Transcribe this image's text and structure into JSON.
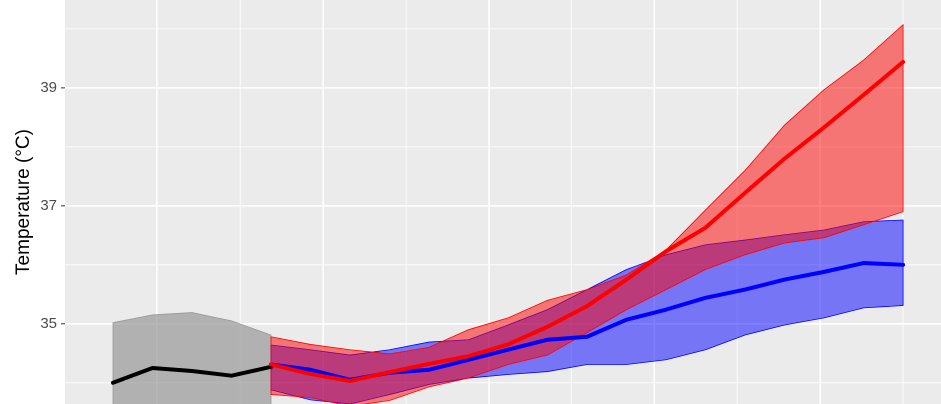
{
  "chart_data": {
    "type": "ribbon-line",
    "y_label": "Temperature (°C)",
    "xlim": [
      -1.215,
      20.96
    ],
    "ylim": [
      33.64,
      40.49
    ],
    "yticks": [
      35,
      37,
      39
    ],
    "yminor": [
      34,
      36,
      38,
      40
    ],
    "xgrid": [
      1.11,
      3.22,
      5.32,
      7.42,
      9.52,
      11.6,
      13.7,
      15.8,
      17.9,
      20
    ],
    "grid": true,
    "series": [
      {
        "color": "#000000",
        "band_color": "#999999",
        "x": [
          0,
          1,
          2,
          3,
          4
        ],
        "values": [
          34.0,
          34.25,
          34.2,
          34.12,
          34.27
        ],
        "upper": [
          35.02,
          35.15,
          35.19,
          35.05,
          34.81
        ],
        "lower": [
          33.4,
          33.4,
          33.4,
          33.4,
          33.5
        ]
      },
      {
        "color": "#0000ff",
        "band_color": "#0000ff",
        "x": [
          4,
          5,
          6,
          7,
          8,
          9,
          10,
          11,
          12,
          13,
          14,
          15,
          16,
          17,
          18,
          19,
          20
        ],
        "values": [
          34.31,
          34.22,
          34.05,
          34.17,
          34.22,
          34.39,
          34.56,
          34.73,
          34.78,
          35.07,
          35.24,
          35.44,
          35.58,
          35.75,
          35.88,
          36.03,
          36.0
        ],
        "upper": [
          34.64,
          34.56,
          34.47,
          34.56,
          34.69,
          34.73,
          34.98,
          35.24,
          35.58,
          35.92,
          36.17,
          36.34,
          36.42,
          36.51,
          36.59,
          36.73,
          36.76
        ],
        "lower": [
          33.88,
          33.71,
          33.64,
          33.8,
          33.97,
          34.08,
          34.14,
          34.19,
          34.31,
          34.31,
          34.39,
          34.56,
          34.81,
          34.98,
          35.1,
          35.27,
          35.31
        ]
      },
      {
        "color": "#ff0000",
        "band_color": "#ff0000",
        "x": [
          4,
          5,
          6,
          7,
          8,
          9,
          10,
          11,
          12,
          13,
          14,
          15,
          16,
          17,
          18,
          19,
          20
        ],
        "values": [
          34.31,
          34.15,
          34.03,
          34.18,
          34.32,
          34.45,
          34.65,
          34.95,
          35.3,
          35.75,
          36.23,
          36.63,
          37.22,
          37.8,
          38.33,
          38.88,
          39.44
        ],
        "upper": [
          34.78,
          34.65,
          34.56,
          34.49,
          34.6,
          34.9,
          35.1,
          35.4,
          35.58,
          35.83,
          36.25,
          36.93,
          37.6,
          38.37,
          38.97,
          39.47,
          40.07
        ],
        "lower": [
          33.8,
          33.75,
          33.6,
          33.7,
          33.93,
          34.08,
          34.31,
          34.47,
          34.85,
          35.24,
          35.58,
          35.92,
          36.17,
          36.37,
          36.46,
          36.68,
          36.9
        ]
      }
    ]
  }
}
